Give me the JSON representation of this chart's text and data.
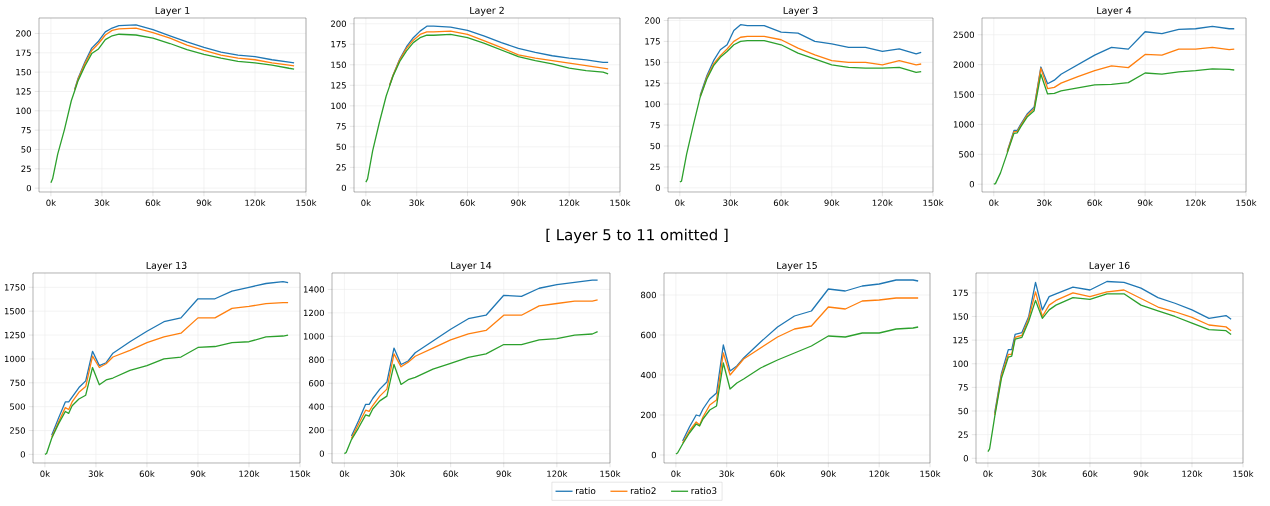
{
  "chart_data": [
    {
      "type": "line",
      "title": "Layer 1",
      "grid": true,
      "x": [
        0,
        1000,
        4000,
        8000,
        12000,
        14000,
        16000,
        20000,
        24000,
        28000,
        32000,
        36000,
        40000,
        50000,
        60000,
        70000,
        80000,
        90000,
        100000,
        110000,
        120000,
        130000,
        140000,
        143000
      ],
      "xlim": [
        -7000,
        150000
      ],
      "xticks": [
        {
          "value": 0,
          "label": "0k"
        },
        {
          "value": 30000,
          "label": "30k"
        },
        {
          "value": 60000,
          "label": "60k"
        },
        {
          "value": 90000,
          "label": "90k"
        },
        {
          "value": 120000,
          "label": "120k"
        },
        {
          "value": 150000,
          "label": "150k"
        }
      ],
      "ylim": [
        -5,
        220
      ],
      "yticks": [
        0,
        25,
        50,
        75,
        100,
        125,
        150,
        175,
        200
      ],
      "series": [
        {
          "color": "#1f77b4",
          "values": [
            null,
            null,
            null,
            null,
            null,
            128,
            142,
            163,
            181,
            190,
            202,
            207,
            210,
            211,
            205,
            197,
            189,
            182,
            176,
            172,
            170,
            166,
            163,
            162
          ]
        },
        {
          "color": "#ff7f0e",
          "values": [
            null,
            null,
            null,
            null,
            null,
            127,
            141,
            161,
            178,
            187,
            198,
            204,
            206,
            207,
            201,
            194,
            185,
            178,
            172,
            168,
            166,
            162,
            159,
            158
          ]
        },
        {
          "color": "#2ca02c",
          "values": [
            7,
            12,
            44,
            76,
            113,
            126,
            139,
            158,
            174,
            180,
            192,
            197,
            199,
            198,
            194,
            187,
            179,
            173,
            168,
            164,
            162,
            159,
            155,
            154
          ]
        }
      ]
    },
    {
      "type": "line",
      "title": "Layer 2",
      "grid": true,
      "x": [
        0,
        1000,
        4000,
        8000,
        12000,
        14000,
        16000,
        20000,
        24000,
        28000,
        32000,
        36000,
        40000,
        50000,
        60000,
        70000,
        80000,
        90000,
        100000,
        110000,
        120000,
        130000,
        140000,
        143000
      ],
      "xlim": [
        -7000,
        150000
      ],
      "xticks": [
        {
          "value": 0,
          "label": "0k"
        },
        {
          "value": 30000,
          "label": "30k"
        },
        {
          "value": 60000,
          "label": "60k"
        },
        {
          "value": 90000,
          "label": "90k"
        },
        {
          "value": 120000,
          "label": "120k"
        },
        {
          "value": 150000,
          "label": "150k"
        }
      ],
      "ylim": [
        -5,
        207
      ],
      "yticks": [
        0,
        25,
        50,
        75,
        100,
        125,
        150,
        175,
        200
      ],
      "series": [
        {
          "color": "#1f77b4",
          "values": [
            null,
            null,
            null,
            null,
            null,
            125,
            137,
            157,
            172,
            183,
            191,
            197,
            197,
            196,
            192,
            185,
            177,
            170,
            165,
            161,
            158,
            156,
            153,
            153
          ]
        },
        {
          "color": "#ff7f0e",
          "values": [
            null,
            null,
            null,
            null,
            null,
            125,
            137,
            156,
            170,
            180,
            187,
            190,
            190,
            191,
            187,
            179,
            171,
            162,
            158,
            155,
            152,
            149,
            146,
            145
          ]
        },
        {
          "color": "#2ca02c",
          "values": [
            7,
            11,
            45,
            80,
            112,
            124,
            136,
            154,
            167,
            177,
            183,
            186,
            186,
            187,
            183,
            176,
            168,
            160,
            155,
            151,
            146,
            143,
            141,
            139
          ]
        }
      ]
    },
    {
      "type": "line",
      "title": "Layer 3",
      "grid": true,
      "x": [
        0,
        1000,
        4000,
        8000,
        12000,
        14000,
        16000,
        20000,
        24000,
        28000,
        32000,
        36000,
        40000,
        50000,
        60000,
        70000,
        80000,
        90000,
        100000,
        110000,
        120000,
        130000,
        140000,
        143000
      ],
      "xlim": [
        -7000,
        150000
      ],
      "xticks": [
        {
          "value": 0,
          "label": "0k"
        },
        {
          "value": 30000,
          "label": "30k"
        },
        {
          "value": 60000,
          "label": "60k"
        },
        {
          "value": 90000,
          "label": "90k"
        },
        {
          "value": 120000,
          "label": "120k"
        },
        {
          "value": 150000,
          "label": "150k"
        }
      ],
      "ylim": [
        -5,
        203
      ],
      "yticks": [
        0,
        25,
        50,
        75,
        100,
        125,
        150,
        175,
        200
      ],
      "series": [
        {
          "color": "#1f77b4",
          "values": [
            null,
            null,
            null,
            null,
            110,
            122,
            134,
            152,
            165,
            171,
            188,
            195,
            194,
            194,
            186,
            185,
            175,
            172,
            168,
            168,
            163,
            166,
            160,
            162
          ]
        },
        {
          "color": "#ff7f0e",
          "values": [
            null,
            null,
            null,
            null,
            109,
            120,
            132,
            148,
            158,
            166,
            175,
            180,
            181,
            181,
            177,
            167,
            159,
            152,
            150,
            150,
            147,
            152,
            147,
            148
          ]
        },
        {
          "color": "#2ca02c",
          "values": [
            7,
            8,
            40,
            75,
            108,
            119,
            130,
            146,
            156,
            163,
            171,
            175,
            176,
            176,
            171,
            161,
            154,
            147,
            144,
            143,
            143,
            144,
            138,
            139
          ]
        }
      ]
    },
    {
      "type": "line",
      "title": "Layer 4",
      "grid": true,
      "x": [
        0,
        1000,
        4000,
        8000,
        12000,
        14000,
        16000,
        20000,
        24000,
        28000,
        32000,
        36000,
        40000,
        50000,
        60000,
        70000,
        80000,
        90000,
        100000,
        110000,
        120000,
        130000,
        140000,
        143000
      ],
      "xlim": [
        -7000,
        150000
      ],
      "xticks": [
        {
          "value": 0,
          "label": "0k"
        },
        {
          "value": 30000,
          "label": "30k"
        },
        {
          "value": 60000,
          "label": "60k"
        },
        {
          "value": 90000,
          "label": "90k"
        },
        {
          "value": 120000,
          "label": "120k"
        },
        {
          "value": 150000,
          "label": "150k"
        }
      ],
      "ylim": [
        -130,
        2780
      ],
      "yticks": [
        0,
        500,
        1000,
        1500,
        2000,
        2500
      ],
      "series": [
        {
          "color": "#1f77b4",
          "values": [
            null,
            null,
            null,
            550,
            900,
            900,
            1000,
            1180,
            1290,
            1960,
            1680,
            1740,
            1840,
            2000,
            2160,
            2290,
            2260,
            2550,
            2520,
            2590,
            2600,
            2640,
            2600,
            2600
          ]
        },
        {
          "color": "#ff7f0e",
          "values": [
            null,
            null,
            null,
            540,
            880,
            880,
            980,
            1160,
            1260,
            1940,
            1600,
            1620,
            1690,
            1800,
            1900,
            1980,
            1950,
            2170,
            2160,
            2260,
            2260,
            2290,
            2250,
            2260
          ]
        },
        {
          "color": "#2ca02c",
          "values": [
            0,
            10,
            190,
            520,
            850,
            860,
            960,
            1130,
            1230,
            1840,
            1510,
            1520,
            1560,
            1610,
            1660,
            1670,
            1700,
            1860,
            1840,
            1880,
            1900,
            1930,
            1920,
            1910
          ]
        }
      ]
    },
    {
      "type": "line",
      "title": "Layer 13",
      "grid": true,
      "annotations": [
        "[ Layer 5 to 11 omitted ]"
      ],
      "x": [
        0,
        1000,
        4000,
        8000,
        12000,
        14000,
        16000,
        20000,
        24000,
        28000,
        32000,
        36000,
        40000,
        50000,
        60000,
        70000,
        80000,
        90000,
        100000,
        110000,
        120000,
        130000,
        140000,
        143000
      ],
      "xlim": [
        -7000,
        150000
      ],
      "xticks": [
        {
          "value": 0,
          "label": "0k"
        },
        {
          "value": 30000,
          "label": "30k"
        },
        {
          "value": 60000,
          "label": "60k"
        },
        {
          "value": 90000,
          "label": "90k"
        },
        {
          "value": 120000,
          "label": "120k"
        },
        {
          "value": 150000,
          "label": "150k"
        }
      ],
      "ylim": [
        -90,
        1900
      ],
      "yticks": [
        0,
        250,
        500,
        750,
        1000,
        1250,
        1500,
        1750
      ],
      "series": [
        {
          "color": "#1f77b4",
          "values": [
            null,
            null,
            200,
            380,
            550,
            550,
            600,
            700,
            770,
            1080,
            930,
            960,
            1060,
            1180,
            1290,
            1390,
            1430,
            1630,
            1630,
            1710,
            1750,
            1790,
            1810,
            1800
          ]
        },
        {
          "color": "#ff7f0e",
          "values": [
            null,
            null,
            180,
            340,
            490,
            470,
            550,
            650,
            710,
            1030,
            910,
            950,
            1020,
            1090,
            1170,
            1230,
            1270,
            1430,
            1430,
            1530,
            1550,
            1580,
            1590,
            1590
          ]
        },
        {
          "color": "#2ca02c",
          "values": [
            0,
            10,
            170,
            320,
            450,
            430,
            510,
            580,
            620,
            910,
            730,
            780,
            800,
            880,
            930,
            1000,
            1020,
            1120,
            1130,
            1170,
            1180,
            1230,
            1240,
            1250
          ]
        }
      ]
    },
    {
      "type": "line",
      "title": "Layer 14",
      "grid": true,
      "x": [
        0,
        1000,
        4000,
        8000,
        12000,
        14000,
        16000,
        20000,
        24000,
        28000,
        32000,
        36000,
        40000,
        50000,
        60000,
        70000,
        80000,
        90000,
        100000,
        110000,
        120000,
        130000,
        140000,
        143000
      ],
      "xlim": [
        -7000,
        150000
      ],
      "xticks": [
        {
          "value": 0,
          "label": "0k"
        },
        {
          "value": 30000,
          "label": "30k"
        },
        {
          "value": 60000,
          "label": "60k"
        },
        {
          "value": 90000,
          "label": "90k"
        },
        {
          "value": 120000,
          "label": "120k"
        },
        {
          "value": 150000,
          "label": "150k"
        }
      ],
      "ylim": [
        -80,
        1540
      ],
      "yticks": [
        0,
        200,
        400,
        600,
        800,
        1000,
        1200,
        1400
      ],
      "series": [
        {
          "color": "#1f77b4",
          "values": [
            null,
            null,
            150,
            280,
            420,
            420,
            470,
            550,
            610,
            900,
            760,
            790,
            860,
            960,
            1060,
            1150,
            1180,
            1350,
            1340,
            1410,
            1440,
            1460,
            1480,
            1480
          ]
        },
        {
          "color": "#ff7f0e",
          "values": [
            null,
            null,
            130,
            250,
            370,
            360,
            410,
            490,
            550,
            850,
            740,
            780,
            830,
            900,
            970,
            1020,
            1050,
            1180,
            1180,
            1260,
            1280,
            1300,
            1300,
            1310
          ]
        },
        {
          "color": "#2ca02c",
          "values": [
            0,
            10,
            120,
            220,
            330,
            320,
            380,
            450,
            490,
            760,
            590,
            630,
            650,
            720,
            770,
            820,
            850,
            930,
            930,
            970,
            980,
            1010,
            1020,
            1040
          ]
        }
      ]
    },
    {
      "type": "line",
      "title": "Layer 15",
      "grid": true,
      "x": [
        0,
        1000,
        4000,
        8000,
        12000,
        14000,
        16000,
        20000,
        24000,
        28000,
        32000,
        36000,
        40000,
        50000,
        60000,
        70000,
        80000,
        90000,
        100000,
        110000,
        120000,
        130000,
        140000,
        143000
      ],
      "xlim": [
        -7000,
        150000
      ],
      "xticks": [
        {
          "value": 0,
          "label": "0k"
        },
        {
          "value": 30000,
          "label": "30k"
        },
        {
          "value": 60000,
          "label": "60k"
        },
        {
          "value": 90000,
          "label": "90k"
        },
        {
          "value": 120000,
          "label": "120k"
        },
        {
          "value": 150000,
          "label": "150k"
        }
      ],
      "ylim": [
        -40,
        910
      ],
      "yticks": [
        0,
        200,
        400,
        600,
        800
      ],
      "series": [
        {
          "color": "#1f77b4",
          "values": [
            null,
            null,
            70,
            140,
            200,
            195,
            230,
            280,
            310,
            550,
            420,
            445,
            485,
            565,
            640,
            695,
            720,
            830,
            820,
            845,
            855,
            875,
            875,
            870
          ]
        },
        {
          "color": "#ff7f0e",
          "values": [
            null,
            null,
            60,
            120,
            165,
            150,
            190,
            250,
            275,
            510,
            400,
            440,
            480,
            535,
            590,
            630,
            645,
            740,
            730,
            770,
            775,
            785,
            785,
            785
          ]
        },
        {
          "color": "#2ca02c",
          "values": [
            5,
            10,
            55,
            110,
            155,
            145,
            180,
            225,
            245,
            460,
            330,
            360,
            380,
            435,
            475,
            510,
            545,
            595,
            590,
            610,
            610,
            630,
            635,
            640
          ]
        }
      ]
    },
    {
      "type": "line",
      "title": "Layer 16",
      "grid": true,
      "legend": "bottom",
      "x": [
        0,
        1000,
        4000,
        8000,
        12000,
        14000,
        16000,
        20000,
        24000,
        28000,
        32000,
        36000,
        40000,
        50000,
        60000,
        70000,
        80000,
        90000,
        100000,
        110000,
        120000,
        130000,
        140000,
        143000
      ],
      "xlim": [
        -7000,
        150000
      ],
      "xticks": [
        {
          "value": 0,
          "label": "0k"
        },
        {
          "value": 30000,
          "label": "30k"
        },
        {
          "value": 60000,
          "label": "60k"
        },
        {
          "value": 90000,
          "label": "90k"
        },
        {
          "value": 120000,
          "label": "120k"
        },
        {
          "value": 150000,
          "label": "150k"
        }
      ],
      "ylim": [
        -5,
        196
      ],
      "yticks": [
        0,
        25,
        50,
        75,
        100,
        125,
        150,
        175
      ],
      "series": [
        {
          "name": "ratio",
          "color": "#1f77b4",
          "values": [
            null,
            null,
            48,
            90,
            115,
            115,
            131,
            133,
            150,
            186,
            157,
            171,
            174,
            181,
            178,
            187,
            186,
            180,
            170,
            164,
            157,
            148,
            151,
            147
          ]
        },
        {
          "name": "ratio2",
          "color": "#ff7f0e",
          "values": [
            null,
            null,
            46,
            88,
            110,
            110,
            128,
            130,
            148,
            176,
            150,
            162,
            167,
            175,
            171,
            176,
            178,
            169,
            160,
            155,
            149,
            141,
            139,
            135
          ]
        },
        {
          "name": "ratio3",
          "color": "#2ca02c",
          "values": [
            7,
            10,
            44,
            85,
            107,
            108,
            126,
            128,
            145,
            167,
            148,
            157,
            162,
            170,
            168,
            174,
            174,
            162,
            156,
            150,
            143,
            136,
            135,
            131
          ]
        }
      ]
    }
  ]
}
